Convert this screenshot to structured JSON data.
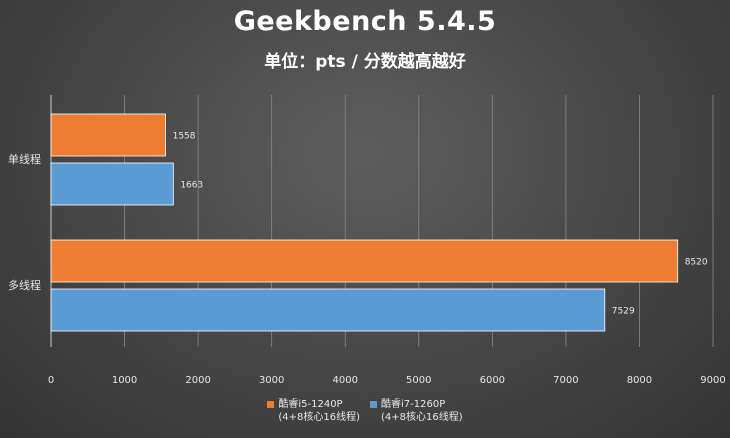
{
  "chart_data": {
    "type": "bar",
    "orientation": "horizontal",
    "title": "Geekbench 5.4.5",
    "subtitle": "单位：pts / 分数越高越好",
    "categories": [
      "单线程",
      "多线程"
    ],
    "series": [
      {
        "name": "酷睿i5-1240P",
        "name_line2": "(4+8核心16线程)",
        "color": "#ED7D31",
        "values": [
          1558,
          8520
        ],
        "labels": [
          "1558",
          "8520"
        ]
      },
      {
        "name": "酷睿i7-1260P",
        "name_line2": "(4+8核心16线程)",
        "color": "#5B9BD5",
        "values": [
          1663,
          7529
        ],
        "labels": [
          "1663",
          "7529"
        ]
      }
    ],
    "xlim": [
      0,
      9000
    ],
    "xticks": [
      "0",
      "1000",
      "2000",
      "3000",
      "4000",
      "5000",
      "6000",
      "7000",
      "8000",
      "9000"
    ],
    "grid": true,
    "legend_position": "bottom"
  }
}
